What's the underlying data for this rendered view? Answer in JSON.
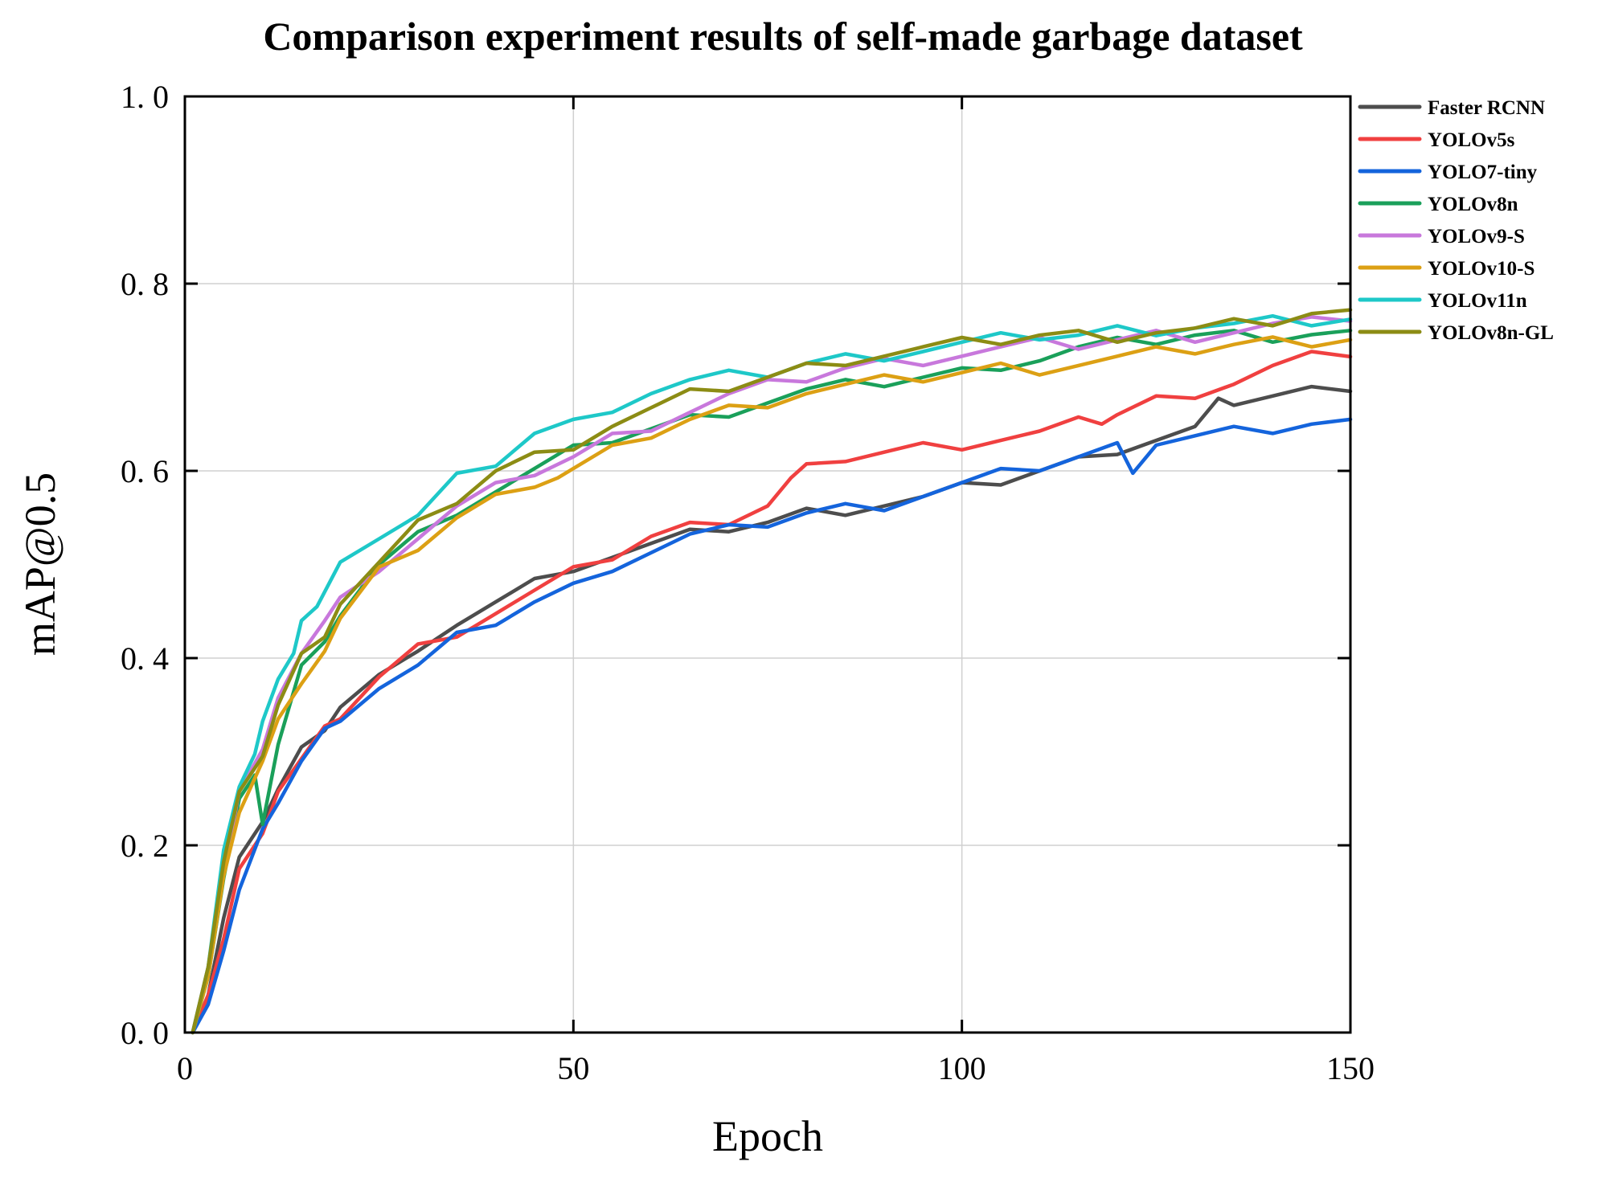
{
  "chart_data": {
    "type": "line",
    "title": "Comparison experiment results of self-made garbage dataset",
    "xlabel": "Epoch",
    "ylabel": "mAP@0.5",
    "xlim": [
      0,
      150
    ],
    "ylim": [
      0.0,
      1.0
    ],
    "xticks": [
      0,
      50,
      100,
      150
    ],
    "xtick_labels": [
      "0",
      "50",
      "100",
      "150"
    ],
    "yticks": [
      0.0,
      0.2,
      0.4,
      0.6,
      0.8,
      1.0
    ],
    "ytick_labels": [
      "0. 0",
      "0. 2",
      "0. 4",
      "0. 6",
      "0. 8",
      "1. 0"
    ],
    "grid": true,
    "legend_position": "top-right-outside",
    "series": [
      {
        "name": "Faster RCNN",
        "color": "#4d4d4d",
        "points": [
          [
            1,
            0
          ],
          [
            3,
            0.04
          ],
          [
            5,
            0.12
          ],
          [
            7,
            0.18
          ],
          [
            10,
            0.23
          ],
          [
            12,
            0.26
          ],
          [
            15,
            0.3
          ],
          [
            18,
            0.33
          ],
          [
            20,
            0.35
          ],
          [
            25,
            0.38
          ],
          [
            30,
            0.4
          ],
          [
            35,
            0.44
          ],
          [
            40,
            0.46
          ],
          [
            45,
            0.48
          ],
          [
            50,
            0.5
          ],
          [
            55,
            0.51
          ],
          [
            60,
            0.52
          ],
          [
            65,
            0.53
          ],
          [
            70,
            0.54
          ],
          [
            75,
            0.545
          ],
          [
            80,
            0.555
          ],
          [
            85,
            0.56
          ],
          [
            90,
            0.565
          ],
          [
            95,
            0.57
          ],
          [
            100,
            0.58
          ],
          [
            105,
            0.59
          ],
          [
            110,
            0.6
          ],
          [
            115,
            0.61
          ],
          [
            120,
            0.625
          ],
          [
            125,
            0.635
          ],
          [
            130,
            0.645
          ],
          [
            133,
            0.67
          ],
          [
            135,
            0.675
          ],
          [
            140,
            0.68
          ],
          [
            145,
            0.685
          ],
          [
            150,
            0.685
          ]
        ]
      },
      {
        "name": "YOLOv5s",
        "color": "#f04040",
        "points": [
          [
            1,
            0
          ],
          [
            3,
            0.04
          ],
          [
            5,
            0.1
          ],
          [
            7,
            0.17
          ],
          [
            10,
            0.22
          ],
          [
            12,
            0.26
          ],
          [
            15,
            0.29
          ],
          [
            18,
            0.32
          ],
          [
            20,
            0.34
          ],
          [
            25,
            0.38
          ],
          [
            30,
            0.41
          ],
          [
            35,
            0.43
          ],
          [
            40,
            0.45
          ],
          [
            45,
            0.47
          ],
          [
            50,
            0.49
          ],
          [
            55,
            0.51
          ],
          [
            60,
            0.53
          ],
          [
            65,
            0.54
          ],
          [
            70,
            0.55
          ],
          [
            75,
            0.565
          ],
          [
            78,
            0.59
          ],
          [
            80,
            0.6
          ],
          [
            85,
            0.615
          ],
          [
            90,
            0.62
          ],
          [
            95,
            0.625
          ],
          [
            100,
            0.63
          ],
          [
            105,
            0.635
          ],
          [
            110,
            0.64
          ],
          [
            115,
            0.65
          ],
          [
            118,
            0.655
          ],
          [
            120,
            0.66
          ],
          [
            125,
            0.675
          ],
          [
            130,
            0.685
          ],
          [
            135,
            0.695
          ],
          [
            140,
            0.71
          ],
          [
            145,
            0.72
          ],
          [
            150,
            0.722
          ]
        ]
      },
      {
        "name": "YOLO7-tiny",
        "color": "#1464dc",
        "points": [
          [
            1,
            0
          ],
          [
            3,
            0.03
          ],
          [
            5,
            0.09
          ],
          [
            7,
            0.15
          ],
          [
            10,
            0.21
          ],
          [
            12,
            0.25
          ],
          [
            15,
            0.29
          ],
          [
            18,
            0.32
          ],
          [
            20,
            0.34
          ],
          [
            25,
            0.37
          ],
          [
            30,
            0.39
          ],
          [
            35,
            0.42
          ],
          [
            40,
            0.44
          ],
          [
            45,
            0.46
          ],
          [
            50,
            0.475
          ],
          [
            55,
            0.5
          ],
          [
            60,
            0.515
          ],
          [
            65,
            0.53
          ],
          [
            70,
            0.535
          ],
          [
            75,
            0.545
          ],
          [
            80,
            0.555
          ],
          [
            85,
            0.56
          ],
          [
            90,
            0.565
          ],
          [
            95,
            0.575
          ],
          [
            100,
            0.585
          ],
          [
            105,
            0.595
          ],
          [
            110,
            0.605
          ],
          [
            115,
            0.615
          ],
          [
            120,
            0.625
          ],
          [
            122,
            0.605
          ],
          [
            125,
            0.63
          ],
          [
            130,
            0.635
          ],
          [
            135,
            0.64
          ],
          [
            140,
            0.645
          ],
          [
            145,
            0.65
          ],
          [
            150,
            0.655
          ]
        ]
      },
      {
        "name": "YOLOv8n",
        "color": "#1aa05a",
        "points": [
          [
            1,
            0
          ],
          [
            3,
            0.06
          ],
          [
            5,
            0.17
          ],
          [
            7,
            0.25
          ],
          [
            9,
            0.27
          ],
          [
            10,
            0.23
          ],
          [
            12,
            0.31
          ],
          [
            15,
            0.39
          ],
          [
            18,
            0.41
          ],
          [
            20,
            0.45
          ],
          [
            25,
            0.5
          ],
          [
            30,
            0.53
          ],
          [
            35,
            0.56
          ],
          [
            40,
            0.58
          ],
          [
            45,
            0.6
          ],
          [
            50,
            0.62
          ],
          [
            55,
            0.635
          ],
          [
            60,
            0.645
          ],
          [
            65,
            0.655
          ],
          [
            70,
            0.665
          ],
          [
            75,
            0.675
          ],
          [
            80,
            0.685
          ],
          [
            85,
            0.69
          ],
          [
            90,
            0.695
          ],
          [
            95,
            0.7
          ],
          [
            100,
            0.705
          ],
          [
            105,
            0.715
          ],
          [
            110,
            0.72
          ],
          [
            115,
            0.73
          ],
          [
            120,
            0.735
          ],
          [
            125,
            0.74
          ],
          [
            130,
            0.745
          ],
          [
            135,
            0.745
          ],
          [
            140,
            0.745
          ],
          [
            145,
            0.748
          ],
          [
            150,
            0.75
          ]
        ]
      },
      {
        "name": "YOLOv9-S",
        "color": "#c878dc",
        "points": [
          [
            1,
            0
          ],
          [
            3,
            0.07
          ],
          [
            5,
            0.18
          ],
          [
            7,
            0.26
          ],
          [
            10,
            0.3
          ],
          [
            12,
            0.35
          ],
          [
            15,
            0.41
          ],
          [
            18,
            0.44
          ],
          [
            20,
            0.46
          ],
          [
            25,
            0.5
          ],
          [
            30,
            0.53
          ],
          [
            35,
            0.56
          ],
          [
            40,
            0.58
          ],
          [
            45,
            0.6
          ],
          [
            50,
            0.615
          ],
          [
            55,
            0.635
          ],
          [
            60,
            0.65
          ],
          [
            65,
            0.665
          ],
          [
            70,
            0.68
          ],
          [
            75,
            0.69
          ],
          [
            80,
            0.7
          ],
          [
            85,
            0.71
          ],
          [
            90,
            0.715
          ],
          [
            95,
            0.72
          ],
          [
            100,
            0.725
          ],
          [
            105,
            0.73
          ],
          [
            110,
            0.735
          ],
          [
            115,
            0.735
          ],
          [
            120,
            0.74
          ],
          [
            125,
            0.745
          ],
          [
            130,
            0.745
          ],
          [
            135,
            0.75
          ],
          [
            140,
            0.755
          ],
          [
            145,
            0.757
          ],
          [
            150,
            0.76
          ]
        ]
      },
      {
        "name": "YOLOv10-S",
        "color": "#dca014",
        "points": [
          [
            1,
            0
          ],
          [
            3,
            0.06
          ],
          [
            5,
            0.16
          ],
          [
            7,
            0.24
          ],
          [
            10,
            0.29
          ],
          [
            12,
            0.33
          ],
          [
            15,
            0.38
          ],
          [
            18,
            0.41
          ],
          [
            20,
            0.44
          ],
          [
            25,
            0.49
          ],
          [
            30,
            0.52
          ],
          [
            35,
            0.55
          ],
          [
            40,
            0.57
          ],
          [
            45,
            0.59
          ],
          [
            48,
            0.595
          ],
          [
            50,
            0.6
          ],
          [
            55,
            0.62
          ],
          [
            60,
            0.64
          ],
          [
            65,
            0.655
          ],
          [
            70,
            0.665
          ],
          [
            75,
            0.675
          ],
          [
            80,
            0.685
          ],
          [
            85,
            0.69
          ],
          [
            90,
            0.695
          ],
          [
            95,
            0.7
          ],
          [
            100,
            0.705
          ],
          [
            105,
            0.71
          ],
          [
            110,
            0.71
          ],
          [
            115,
            0.715
          ],
          [
            120,
            0.72
          ],
          [
            125,
            0.725
          ],
          [
            130,
            0.73
          ],
          [
            135,
            0.735
          ],
          [
            140,
            0.738
          ],
          [
            145,
            0.74
          ],
          [
            150,
            0.74
          ]
        ]
      },
      {
        "name": "YOLOv11n",
        "color": "#1ec8c8",
        "points": [
          [
            1,
            0
          ],
          [
            3,
            0.07
          ],
          [
            5,
            0.19
          ],
          [
            7,
            0.27
          ],
          [
            9,
            0.3
          ],
          [
            10,
            0.33
          ],
          [
            12,
            0.37
          ],
          [
            14,
            0.41
          ],
          [
            15,
            0.44
          ],
          [
            17,
            0.45
          ],
          [
            20,
            0.51
          ],
          [
            25,
            0.53
          ],
          [
            30,
            0.55
          ],
          [
            35,
            0.59
          ],
          [
            40,
            0.61
          ],
          [
            45,
            0.64
          ],
          [
            50,
            0.65
          ],
          [
            55,
            0.67
          ],
          [
            60,
            0.685
          ],
          [
            65,
            0.695
          ],
          [
            70,
            0.7
          ],
          [
            75,
            0.705
          ],
          [
            80,
            0.715
          ],
          [
            85,
            0.72
          ],
          [
            90,
            0.725
          ],
          [
            95,
            0.73
          ],
          [
            100,
            0.735
          ],
          [
            105,
            0.74
          ],
          [
            110,
            0.745
          ],
          [
            115,
            0.745
          ],
          [
            120,
            0.75
          ],
          [
            125,
            0.752
          ],
          [
            130,
            0.755
          ],
          [
            135,
            0.755
          ],
          [
            140,
            0.758
          ],
          [
            145,
            0.76
          ],
          [
            150,
            0.762
          ]
        ]
      },
      {
        "name": "YOLOv8n-GL",
        "color": "#8c8c14",
        "points": [
          [
            1,
            0
          ],
          [
            3,
            0.07
          ],
          [
            5,
            0.18
          ],
          [
            7,
            0.25
          ],
          [
            10,
            0.3
          ],
          [
            12,
            0.35
          ],
          [
            15,
            0.4
          ],
          [
            18,
            0.43
          ],
          [
            20,
            0.46
          ],
          [
            25,
            0.5
          ],
          [
            30,
            0.54
          ],
          [
            35,
            0.57
          ],
          [
            40,
            0.6
          ],
          [
            45,
            0.615
          ],
          [
            50,
            0.63
          ],
          [
            55,
            0.65
          ],
          [
            60,
            0.665
          ],
          [
            65,
            0.68
          ],
          [
            70,
            0.69
          ],
          [
            75,
            0.7
          ],
          [
            80,
            0.71
          ],
          [
            85,
            0.72
          ],
          [
            90,
            0.725
          ],
          [
            95,
            0.73
          ],
          [
            100,
            0.735
          ],
          [
            105,
            0.74
          ],
          [
            110,
            0.745
          ],
          [
            115,
            0.745
          ],
          [
            120,
            0.745
          ],
          [
            125,
            0.75
          ],
          [
            130,
            0.75
          ],
          [
            135,
            0.755
          ],
          [
            140,
            0.76
          ],
          [
            145,
            0.768
          ],
          [
            150,
            0.772
          ]
        ]
      }
    ]
  },
  "legend_swatch_color_extra": "#7a4040"
}
